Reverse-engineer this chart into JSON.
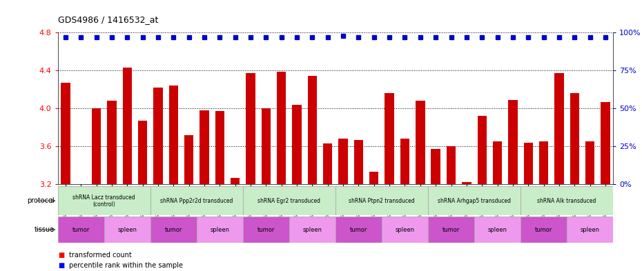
{
  "title": "GDS4986 / 1416532_at",
  "samples": [
    "GSM1290692",
    "GSM1290693",
    "GSM1290694",
    "GSM1290674",
    "GSM1290675",
    "GSM1290676",
    "GSM1290695",
    "GSM1290696",
    "GSM1290697",
    "GSM1290677",
    "GSM1290678",
    "GSM1290679",
    "GSM1290698",
    "GSM1290699",
    "GSM1290700",
    "GSM1290680",
    "GSM1290681",
    "GSM1290682",
    "GSM1290701",
    "GSM1290702",
    "GSM1290703",
    "GSM1290683",
    "GSM1290684",
    "GSM1290685",
    "GSM1290704",
    "GSM1290705",
    "GSM1290706",
    "GSM1290686",
    "GSM1290687",
    "GSM1290688",
    "GSM1290707",
    "GSM1290708",
    "GSM1290709",
    "GSM1290689",
    "GSM1290690",
    "GSM1290691"
  ],
  "bar_values": [
    4.27,
    3.2,
    4.0,
    4.08,
    4.43,
    3.87,
    4.22,
    4.24,
    3.72,
    3.98,
    3.97,
    3.27,
    4.37,
    4.0,
    4.39,
    4.04,
    4.34,
    3.63,
    3.68,
    3.67,
    3.33,
    4.16,
    3.68,
    4.08,
    3.57,
    3.6,
    3.22,
    3.92,
    3.65,
    4.09,
    3.64,
    3.65,
    4.37,
    4.16,
    3.65,
    4.07
  ],
  "percentile_values": [
    97,
    97,
    97,
    97,
    97,
    97,
    97,
    97,
    97,
    97,
    97,
    97,
    97,
    97,
    97,
    97,
    97,
    97,
    98,
    97,
    97,
    97,
    97,
    97,
    97,
    97,
    97,
    97,
    97,
    97,
    97,
    97,
    97,
    97,
    97,
    97
  ],
  "ylim": [
    3.2,
    4.8
  ],
  "yticks_left": [
    3.2,
    3.6,
    4.0,
    4.4,
    4.8
  ],
  "yticks_right": [
    0,
    25,
    50,
    75,
    100
  ],
  "bar_color": "#cc0000",
  "dot_color": "#0000cc",
  "protocols": [
    {
      "label": "shRNA Lacz transduced\n(control)",
      "start": 0,
      "end": 6
    },
    {
      "label": "shRNA Ppp2r2d transduced",
      "start": 6,
      "end": 12
    },
    {
      "label": "shRNA Egr2 transduced",
      "start": 12,
      "end": 18
    },
    {
      "label": "shRNA Ptpn2 transduced",
      "start": 18,
      "end": 24
    },
    {
      "label": "shRNA Arhgap5 transduced",
      "start": 24,
      "end": 30
    },
    {
      "label": "shRNA Alk transduced",
      "start": 30,
      "end": 36
    }
  ],
  "tissues": [
    {
      "label": "tumor",
      "start": 0,
      "end": 3
    },
    {
      "label": "spleen",
      "start": 3,
      "end": 6
    },
    {
      "label": "tumor",
      "start": 6,
      "end": 9
    },
    {
      "label": "spleen",
      "start": 9,
      "end": 12
    },
    {
      "label": "tumor",
      "start": 12,
      "end": 15
    },
    {
      "label": "spleen",
      "start": 15,
      "end": 18
    },
    {
      "label": "tumor",
      "start": 18,
      "end": 21
    },
    {
      "label": "spleen",
      "start": 21,
      "end": 24
    },
    {
      "label": "tumor",
      "start": 24,
      "end": 27
    },
    {
      "label": "spleen",
      "start": 27,
      "end": 30
    },
    {
      "label": "tumor",
      "start": 30,
      "end": 33
    },
    {
      "label": "spleen",
      "start": 33,
      "end": 36
    }
  ],
  "legend_red": "transformed count",
  "legend_blue": "percentile rank within the sample",
  "protocol_label": "protocol",
  "tissue_label": "tissue",
  "proto_color": "#c8edc8",
  "tumor_color": "#cc55cc",
  "spleen_color": "#ee99ee",
  "background_color": "#ffffff"
}
